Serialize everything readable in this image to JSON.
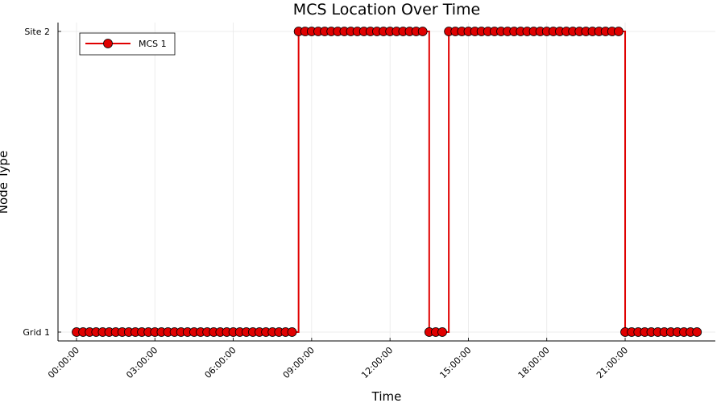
{
  "chart_data": {
    "type": "line",
    "title": "MCS Location Over Time",
    "xlabel": "Time",
    "ylabel": "Node Type",
    "x_unit": "hours",
    "x_ticks": [
      "00:00:00",
      "03:00:00",
      "06:00:00",
      "09:00:00",
      "12:00:00",
      "15:00:00",
      "18:00:00",
      "21:00:00"
    ],
    "y_categories": [
      "Grid 1",
      "Site 2"
    ],
    "xlim": [
      "00:00:00",
      "23:45:00"
    ],
    "grid": true,
    "step": "post",
    "legend_position": "top-left",
    "series": [
      {
        "name": "MCS 1",
        "color": "#e00000",
        "marker": "circle",
        "x_start": "00:00:00",
        "x_interval_minutes": 15,
        "values": [
          "Grid 1",
          "Grid 1",
          "Grid 1",
          "Grid 1",
          "Grid 1",
          "Grid 1",
          "Grid 1",
          "Grid 1",
          "Grid 1",
          "Grid 1",
          "Grid 1",
          "Grid 1",
          "Grid 1",
          "Grid 1",
          "Grid 1",
          "Grid 1",
          "Grid 1",
          "Grid 1",
          "Grid 1",
          "Grid 1",
          "Grid 1",
          "Grid 1",
          "Grid 1",
          "Grid 1",
          "Grid 1",
          "Grid 1",
          "Grid 1",
          "Grid 1",
          "Grid 1",
          "Grid 1",
          "Grid 1",
          "Grid 1",
          "Grid 1",
          "Grid 1",
          "Site 2",
          "Site 2",
          "Site 2",
          "Site 2",
          "Site 2",
          "Site 2",
          "Site 2",
          "Site 2",
          "Site 2",
          "Site 2",
          "Site 2",
          "Site 2",
          "Site 2",
          "Site 2",
          "Site 2",
          "Site 2",
          "Site 2",
          "Site 2",
          "Site 2",
          "Site 2",
          "Grid 1",
          "Grid 1",
          "Grid 1",
          "Site 2",
          "Site 2",
          "Site 2",
          "Site 2",
          "Site 2",
          "Site 2",
          "Site 2",
          "Site 2",
          "Site 2",
          "Site 2",
          "Site 2",
          "Site 2",
          "Site 2",
          "Site 2",
          "Site 2",
          "Site 2",
          "Site 2",
          "Site 2",
          "Site 2",
          "Site 2",
          "Site 2",
          "Site 2",
          "Site 2",
          "Site 2",
          "Site 2",
          "Site 2",
          "Site 2",
          "Grid 1",
          "Grid 1",
          "Grid 1",
          "Grid 1",
          "Grid 1",
          "Grid 1",
          "Grid 1",
          "Grid 1",
          "Grid 1",
          "Grid 1",
          "Grid 1",
          "Grid 1"
        ]
      }
    ]
  }
}
